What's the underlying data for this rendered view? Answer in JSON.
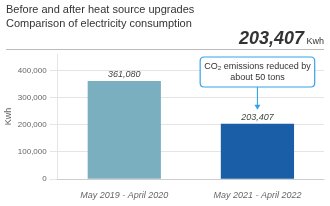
{
  "chart_data": {
    "type": "bar",
    "title": "Before and after heat source upgrades",
    "subtitle": "Comparison of electricity consumption",
    "annotations": [
      "203,407",
      "Kwh",
      "CO₂ emissions reduced by\nabout 50 tons"
    ],
    "ylabel": "Kwh",
    "categories": [
      "May 2019 - April 2020",
      "May 2021 - April 2022"
    ],
    "values": [
      361080,
      203407
    ],
    "value_labels": [
      "361,080",
      "203,407"
    ],
    "data_labels": true,
    "colors": [
      "#7aafc0",
      "#1a5ea8"
    ],
    "ylim": [
      0,
      460000
    ],
    "yticks": [
      0,
      {
        "value": 100000,
        "label": "100,000"
      },
      {
        "value": 200000,
        "label": "200,000"
      },
      {
        "value": 300000,
        "label": "300,000"
      },
      {
        "value": 400000,
        "label": "400,000"
      }
    ],
    "grid": true
  }
}
